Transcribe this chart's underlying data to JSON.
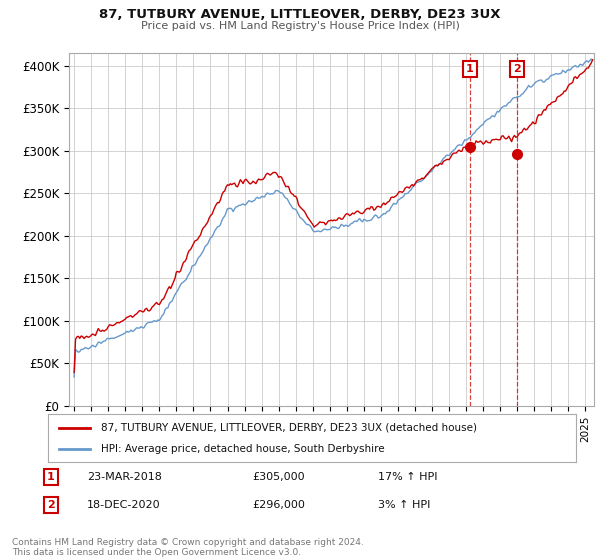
{
  "title1": "87, TUTBURY AVENUE, LITTLEOVER, DERBY, DE23 3UX",
  "title2": "Price paid vs. HM Land Registry's House Price Index (HPI)",
  "ylabel_ticks": [
    "£0",
    "£50K",
    "£100K",
    "£150K",
    "£200K",
    "£250K",
    "£300K",
    "£350K",
    "£400K"
  ],
  "ytick_vals": [
    0,
    50000,
    100000,
    150000,
    200000,
    250000,
    300000,
    350000,
    400000
  ],
  "ylim": [
    0,
    415000
  ],
  "xlim_start": 1994.7,
  "xlim_end": 2025.5,
  "red_color": "#cc0000",
  "blue_color": "#6699cc",
  "sale1_x": 2018.22,
  "sale1_y": 305000,
  "sale2_x": 2020.97,
  "sale2_y": 296000,
  "legend_label_red": "87, TUTBURY AVENUE, LITTLEOVER, DERBY, DE23 3UX (detached house)",
  "legend_label_blue": "HPI: Average price, detached house, South Derbyshire",
  "footnote": "Contains HM Land Registry data © Crown copyright and database right 2024.\nThis data is licensed under the Open Government Licence v3.0.",
  "background_color": "#ffffff",
  "grid_color": "#cccccc",
  "sale1_date": "23-MAR-2018",
  "sale1_price": "£305,000",
  "sale1_hpi": "17% ↑ HPI",
  "sale2_date": "18-DEC-2020",
  "sale2_price": "£296,000",
  "sale2_hpi": "3% ↑ HPI"
}
